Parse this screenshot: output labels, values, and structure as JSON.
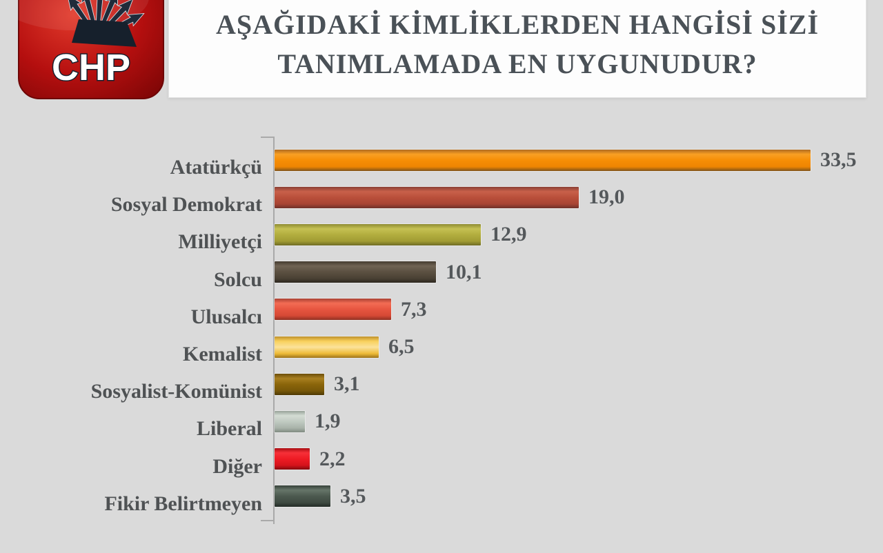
{
  "page": {
    "background": "#dadada"
  },
  "logo": {
    "label": "CHP",
    "red_center": "#e23a2b",
    "red_mid": "#b50f0f",
    "red_edge": "#7e0606",
    "arrow_color": "#1f2b3a",
    "text_color": "#ffffff"
  },
  "header": {
    "title_line1": "AŞAĞIDAKİ KİMLİKLERDEN HANGİSİ SİZİ",
    "title_line2": "TANIMLAMADA EN UYGUNUDUR?",
    "text_color": "#4a5157",
    "box_bg": "#fdfdfd"
  },
  "chart_data": {
    "type": "bar",
    "orientation": "horizontal",
    "title": "AŞAĞIDAKİ KİMLİKLERDEN HANGİSİ SİZİ TANIMLAMADA EN UYGUNUDUR?",
    "xlim": [
      0,
      35
    ],
    "grid": false,
    "legend": false,
    "decimal_separator": ",",
    "categories": [
      "Atatürkçü",
      "Sosyal Demokrat",
      "Milliyetçi",
      "Solcu",
      "Ulusalcı",
      "Kemalist",
      "Sosyalist-Komünist",
      "Liberal",
      "Diğer",
      "Fikir Belirtmeyen"
    ],
    "values": [
      33.5,
      19.0,
      12.9,
      10.1,
      7.3,
      6.5,
      3.1,
      1.9,
      2.2,
      3.5
    ],
    "value_labels": [
      "33,5",
      "19,0",
      "12,9",
      "10,1",
      "7,3",
      "6,5",
      "3,1",
      "1,9",
      "2,2",
      "3,5"
    ],
    "bar_gradients": [
      [
        "#b06a20",
        "#f9a024",
        "#f68e05",
        "#ee8502",
        "#80541a"
      ],
      [
        "#8a4034",
        "#c8604a",
        "#b94f3a",
        "#a84434",
        "#6f3028"
      ],
      [
        "#8e8b32",
        "#c5c153",
        "#b2ad3e",
        "#a19c34",
        "#6f6b24"
      ],
      [
        "#453b2f",
        "#6f6354",
        "#5b5041",
        "#4a4134",
        "#2d271f"
      ],
      [
        "#aa4132",
        "#f36c54",
        "#e75540",
        "#d54935",
        "#8f3123"
      ],
      [
        "#c0912c",
        "#f8d05c",
        "#fbe29a",
        "#eebb37",
        "#9c731a"
      ],
      [
        "#6b4d0a",
        "#a87f20",
        "#8a650a",
        "#775708",
        "#4e3a05"
      ],
      [
        "#96a298",
        "#d4dcd4",
        "#c0cac1",
        "#a8b2a9",
        "#808b81"
      ],
      [
        "#a80d12",
        "#f73038",
        "#ee1b24",
        "#d5131b",
        "#840a0e"
      ],
      [
        "#364139",
        "#667569",
        "#4c594f",
        "#3f4b42",
        "#232b26"
      ]
    ],
    "axis_color": "#a9a9a9",
    "label_color": "#4f5254",
    "value_color": "#54585b"
  }
}
